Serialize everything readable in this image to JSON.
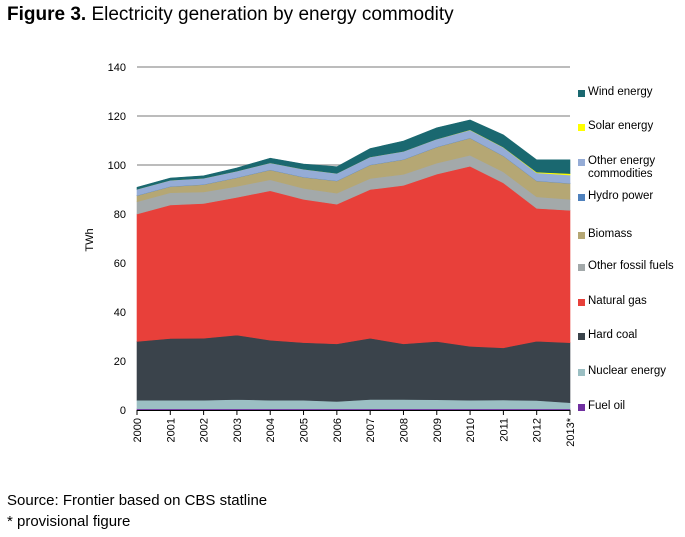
{
  "figure": {
    "label": "Figure 3.",
    "title": "Electricity generation by energy commodity"
  },
  "source_note": "Source: Frontier based on CBS statline",
  "footnote": "* provisional figure",
  "chart_data": {
    "type": "area",
    "stacked": true,
    "title": "Electricity generation by energy commodity",
    "xlabel": "",
    "ylabel": "TWh",
    "ylim": [
      0,
      140
    ],
    "yticks": [
      0,
      20,
      40,
      60,
      80,
      100,
      120,
      140
    ],
    "grid": true,
    "legend_position": "right",
    "categories": [
      "2000",
      "2001",
      "2002",
      "2003",
      "2004",
      "2005",
      "2006",
      "2007",
      "2008",
      "2009",
      "2010",
      "2011",
      "2012",
      "2013*"
    ],
    "series": [
      {
        "name": "Fuel oil",
        "color": "#7030a0",
        "values": [
          0.5,
          0.5,
          0.5,
          0.5,
          0.5,
          0.5,
          0.5,
          0.5,
          0.5,
          0.5,
          0.5,
          0.5,
          0.5,
          0.5
        ]
      },
      {
        "name": "Nuclear energy",
        "color": "#9bbfc3",
        "values": [
          3.5,
          3.5,
          3.5,
          3.8,
          3.5,
          3.5,
          3.0,
          3.8,
          3.8,
          3.7,
          3.5,
          3.6,
          3.4,
          2.5
        ]
      },
      {
        "name": "Hard coal",
        "color": "#3a434b",
        "values": [
          24,
          25.2,
          25.3,
          26.3,
          24.5,
          23.5,
          23.5,
          25.0,
          22.7,
          23.8,
          22,
          21.3,
          24.2,
          24.5
        ]
      },
      {
        "name": "Natural gas",
        "color": "#e8403a",
        "values": [
          52,
          54.5,
          55,
          56.2,
          61,
          58.5,
          57,
          60.7,
          64.7,
          68.3,
          73.5,
          67.3,
          54.2,
          54
        ]
      },
      {
        "name": "Other fossil fuels",
        "color": "#a3a9aa",
        "values": [
          5,
          5,
          4.7,
          4.5,
          4.5,
          4.5,
          4.5,
          4.5,
          4.5,
          4.5,
          4.5,
          4.5,
          4.7,
          4.5
        ]
      },
      {
        "name": "Biomass",
        "color": "#b5a774",
        "values": [
          2.5,
          2.5,
          3,
          3.5,
          4,
          4.5,
          5,
          5.5,
          6,
          6.5,
          7,
          6.5,
          6.5,
          6.5
        ]
      },
      {
        "name": "Hydro power",
        "color": "#4f81bd",
        "values": [
          0.1,
          0.1,
          0.1,
          0.1,
          0.1,
          0.1,
          0.1,
          0.1,
          0.1,
          0.1,
          0.1,
          0.1,
          0.1,
          0.1
        ]
      },
      {
        "name": "Other energy commodities",
        "color": "#95acd6",
        "values": [
          2.5,
          2.5,
          2.5,
          2.6,
          2.8,
          3.2,
          3.0,
          3.2,
          3.3,
          3.2,
          3.2,
          3.4,
          3.2,
          3.3
        ]
      },
      {
        "name": "Solar energy",
        "color": "#ffff00",
        "values": [
          0,
          0,
          0,
          0,
          0,
          0,
          0,
          0,
          0,
          0,
          0.1,
          0.1,
          0.3,
          0.6
        ]
      },
      {
        "name": "Wind energy",
        "color": "#1a6870",
        "values": [
          0.8,
          0.9,
          1.0,
          1.3,
          1.9,
          2.1,
          2.7,
          3.4,
          4.2,
          4.6,
          4.0,
          5.0,
          5.0,
          5.6
        ]
      }
    ],
    "legend_order": [
      "Wind energy",
      "Solar energy",
      "Other energy commodities",
      "Hydro power",
      "Biomass",
      "Other fossil fuels",
      "Natural gas",
      "Hard coal",
      "Nuclear energy",
      "Fuel oil"
    ]
  }
}
